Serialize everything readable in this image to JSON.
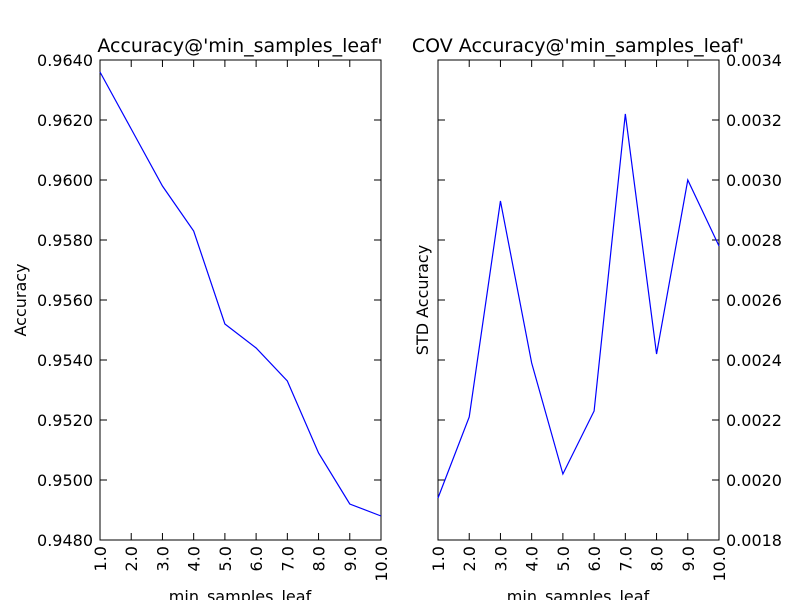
{
  "chart_data": [
    {
      "type": "line",
      "title": "Accuracy@'min_samples_leaf'",
      "xlabel": "min_samples_leaf",
      "ylabel": "Accuracy",
      "x": [
        1.0,
        2.0,
        3.0,
        4.0,
        5.0,
        6.0,
        7.0,
        8.0,
        9.0,
        10.0
      ],
      "xticks": [
        "1.0",
        "2.0",
        "3.0",
        "4.0",
        "5.0",
        "6.0",
        "7.0",
        "8.0",
        "9.0",
        "10.0"
      ],
      "xlim": [
        1.0,
        10.0
      ],
      "yticks": [
        "0.9480",
        "0.9500",
        "0.9520",
        "0.9540",
        "0.9560",
        "0.9580",
        "0.9600",
        "0.9620",
        "0.9640"
      ],
      "ylim": [
        0.948,
        0.964
      ],
      "y_axis_side": "left",
      "grid": false,
      "series": [
        {
          "color": "#0000ff",
          "values": [
            0.9636,
            0.9617,
            0.9598,
            0.9583,
            0.9552,
            0.9544,
            0.9533,
            0.9509,
            0.9492,
            0.9488
          ]
        }
      ]
    },
    {
      "type": "line",
      "title": "COV Accuracy@'min_samples_leaf'",
      "xlabel": "min_samples_leaf",
      "ylabel": "STD Accuracy",
      "x": [
        1.0,
        2.0,
        3.0,
        4.0,
        5.0,
        6.0,
        7.0,
        8.0,
        9.0,
        10.0
      ],
      "xticks": [
        "1.0",
        "2.0",
        "3.0",
        "4.0",
        "5.0",
        "6.0",
        "7.0",
        "8.0",
        "9.0",
        "10.0"
      ],
      "xlim": [
        1.0,
        10.0
      ],
      "yticks": [
        "0.0018",
        "0.0020",
        "0.0022",
        "0.0024",
        "0.0026",
        "0.0028",
        "0.0030",
        "0.0032",
        "0.0034"
      ],
      "ylim": [
        0.0018,
        0.0034
      ],
      "y_axis_side": "right",
      "grid": false,
      "series": [
        {
          "color": "#0000ff",
          "values": [
            0.00194,
            0.00221,
            0.00293,
            0.00239,
            0.00202,
            0.00223,
            0.00322,
            0.00242,
            0.003,
            0.00278
          ]
        }
      ]
    }
  ]
}
